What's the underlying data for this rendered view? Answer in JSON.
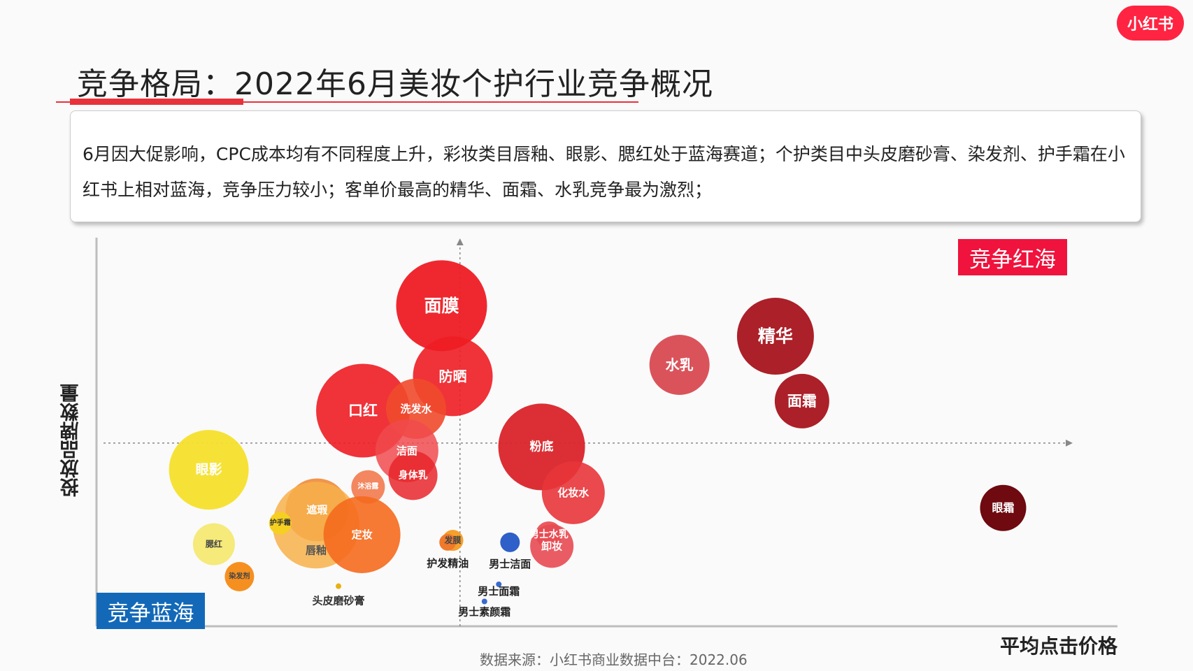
{
  "logo": "小红书",
  "title": "竞争格局：2022年6月美妆个护行业竞争概况",
  "summary": "6月因大促影响，CPC成本均有不同程度上升，彩妆类目唇釉、眼影、腮红处于蓝海赛道；个护类目中头皮磨砂膏、染发剂、护手霜在小红书上相对蓝海，竞争压力较小；客单价最高的精华、面霜、水乳竞争最为激烈；",
  "quadrant_labels": {
    "red": "竞争红海",
    "blue": "竞争蓝海"
  },
  "source": "数据来源：小红书商业数据中台：2022.06",
  "chart_data": {
    "type": "scatter",
    "xlabel": "平均点击价格",
    "ylabel": "投放品牌数量",
    "xlim": [
      0,
      100
    ],
    "ylim": [
      0,
      100
    ],
    "reference_lines": {
      "x": 35.6,
      "y": 48
    },
    "points": [
      {
        "name": "面膜",
        "x": 33.8,
        "y": 84,
        "size": 65,
        "color": "#ee1c24",
        "text": "#ffffff",
        "font": 25,
        "alpha": 0.95
      },
      {
        "name": "防晒",
        "x": 34.9,
        "y": 65.5,
        "size": 57,
        "color": "#ee1c24",
        "text": "#ffffff",
        "font": 20,
        "alpha": 0.9
      },
      {
        "name": "口红",
        "x": 26.1,
        "y": 56.5,
        "size": 67,
        "color": "#ee1c24",
        "text": "#ffffff",
        "font": 21,
        "alpha": 0.9
      },
      {
        "name": "洗发水",
        "x": 31.3,
        "y": 57,
        "size": 43,
        "color": "#f04a2c",
        "text": "#ffffff",
        "font": 15,
        "alpha": 0.9
      },
      {
        "name": "洁面",
        "x": 30.4,
        "y": 46,
        "size": 45,
        "color": "#f04a4e",
        "text": "#ffffff",
        "font": 15,
        "alpha": 0.85
      },
      {
        "name": "身体乳",
        "x": 31,
        "y": 39.5,
        "size": 35,
        "color": "#e8262c",
        "text": "#ffffff",
        "font": 14,
        "alpha": 0.85
      },
      {
        "name": "沐浴露",
        "x": 26.6,
        "y": 36.5,
        "size": 24,
        "color": "#f27a4e",
        "text": "#ffffff",
        "font": 10,
        "alpha": 0.9
      },
      {
        "name": "眼影",
        "x": 11,
        "y": 41,
        "size": 57,
        "color": "#f5e02c",
        "text": "#ffffff",
        "font": 19,
        "alpha": 0.95
      },
      {
        "name": "遮瑕",
        "x": 21.6,
        "y": 30.5,
        "size": 45,
        "color": "#f08a3a",
        "text": "#ffffff",
        "font": 15,
        "alpha": 0.9
      },
      {
        "name": "唇釉",
        "x": 21.5,
        "y": 26.5,
        "size": 62,
        "color": "#f7b04a",
        "text": "#555555",
        "font": 15,
        "alpha": 0.85,
        "label_dy": 36
      },
      {
        "name": "定妆",
        "x": 26,
        "y": 24,
        "size": 55,
        "color": "#f56a1e",
        "text": "#ffffff",
        "font": 15,
        "alpha": 0.9
      },
      {
        "name": "护手霜",
        "x": 18,
        "y": 27,
        "size": 16,
        "color": "#f5d020",
        "text": "#333333",
        "font": 10,
        "alpha": 1
      },
      {
        "name": "腮红",
        "x": 11.5,
        "y": 21.5,
        "size": 30,
        "color": "#f5ea7a",
        "text": "#444444",
        "font": 12,
        "alpha": 1
      },
      {
        "name": "染发剂",
        "x": 14,
        "y": 13,
        "size": 21,
        "color": "#f59020",
        "text": "#444444",
        "font": 10,
        "alpha": 1
      },
      {
        "name": "头皮磨砂膏",
        "x": 23.7,
        "y": 10.5,
        "size": 4,
        "color": "#e8b010",
        "text": "#333333",
        "font": 15,
        "alpha": 1,
        "label_dy": 21
      },
      {
        "name": "粉底",
        "x": 43.6,
        "y": 47,
        "size": 62,
        "color": "#d9242a",
        "text": "#ffffff",
        "font": 17,
        "alpha": 0.95
      },
      {
        "name": "化妆水",
        "x": 46.7,
        "y": 35,
        "size": 45,
        "color": "#e8353a",
        "text": "#ffffff",
        "font": 15,
        "alpha": 0.9
      },
      {
        "name": "男士水乳",
        "x": 44.3,
        "y": 24,
        "size": 19,
        "color": "#e8484e",
        "text": "#ffffff",
        "font": 14,
        "alpha": 0.9
      },
      {
        "name": "卸妆",
        "x": 44.6,
        "y": 21,
        "size": 31,
        "color": "#e84a52",
        "text": "#ffffff",
        "font": 15,
        "alpha": 0.9
      },
      {
        "name": "发膜",
        "x": 34.9,
        "y": 22.5,
        "size": 15,
        "color": "#f5a02c",
        "text": "#444444",
        "font": 12,
        "alpha": 1
      },
      {
        "name": "护发精油",
        "x": 34.4,
        "y": 22,
        "size": 12,
        "color": "#f07a2c",
        "text": "#222222",
        "font": 15,
        "alpha": 1,
        "label_dy": 30
      },
      {
        "name": "男士洁面",
        "x": 40.5,
        "y": 22,
        "size": 14,
        "color": "#2f5fc8",
        "text": "#222222",
        "font": 15,
        "alpha": 1,
        "label_dy": 31
      },
      {
        "name": "男士面霜",
        "x": 39.4,
        "y": 11,
        "size": 4,
        "color": "#3a6ad0",
        "text": "#222222",
        "font": 15,
        "alpha": 1,
        "label_dy": 10
      },
      {
        "name": "男士素颜霜",
        "x": 38,
        "y": 6.5,
        "size": 4,
        "color": "#3a6ad0",
        "text": "#222222",
        "font": 15,
        "alpha": 1,
        "label_dy": 15
      },
      {
        "name": "水乳",
        "x": 57.1,
        "y": 68.5,
        "size": 43,
        "color": "#d84a52",
        "text": "#ffffff",
        "font": 20,
        "alpha": 0.95
      },
      {
        "name": "精华",
        "x": 66.5,
        "y": 76,
        "size": 55,
        "color": "#a8141e",
        "text": "#ffffff",
        "font": 25,
        "alpha": 0.95
      },
      {
        "name": "面霜",
        "x": 69.1,
        "y": 59,
        "size": 39,
        "color": "#a8141e",
        "text": "#ffffff",
        "font": 21,
        "alpha": 0.95
      },
      {
        "name": "眼霜",
        "x": 88.8,
        "y": 31,
        "size": 33,
        "color": "#6e0a10",
        "text": "#ffffff",
        "font": 16,
        "alpha": 1
      }
    ]
  }
}
